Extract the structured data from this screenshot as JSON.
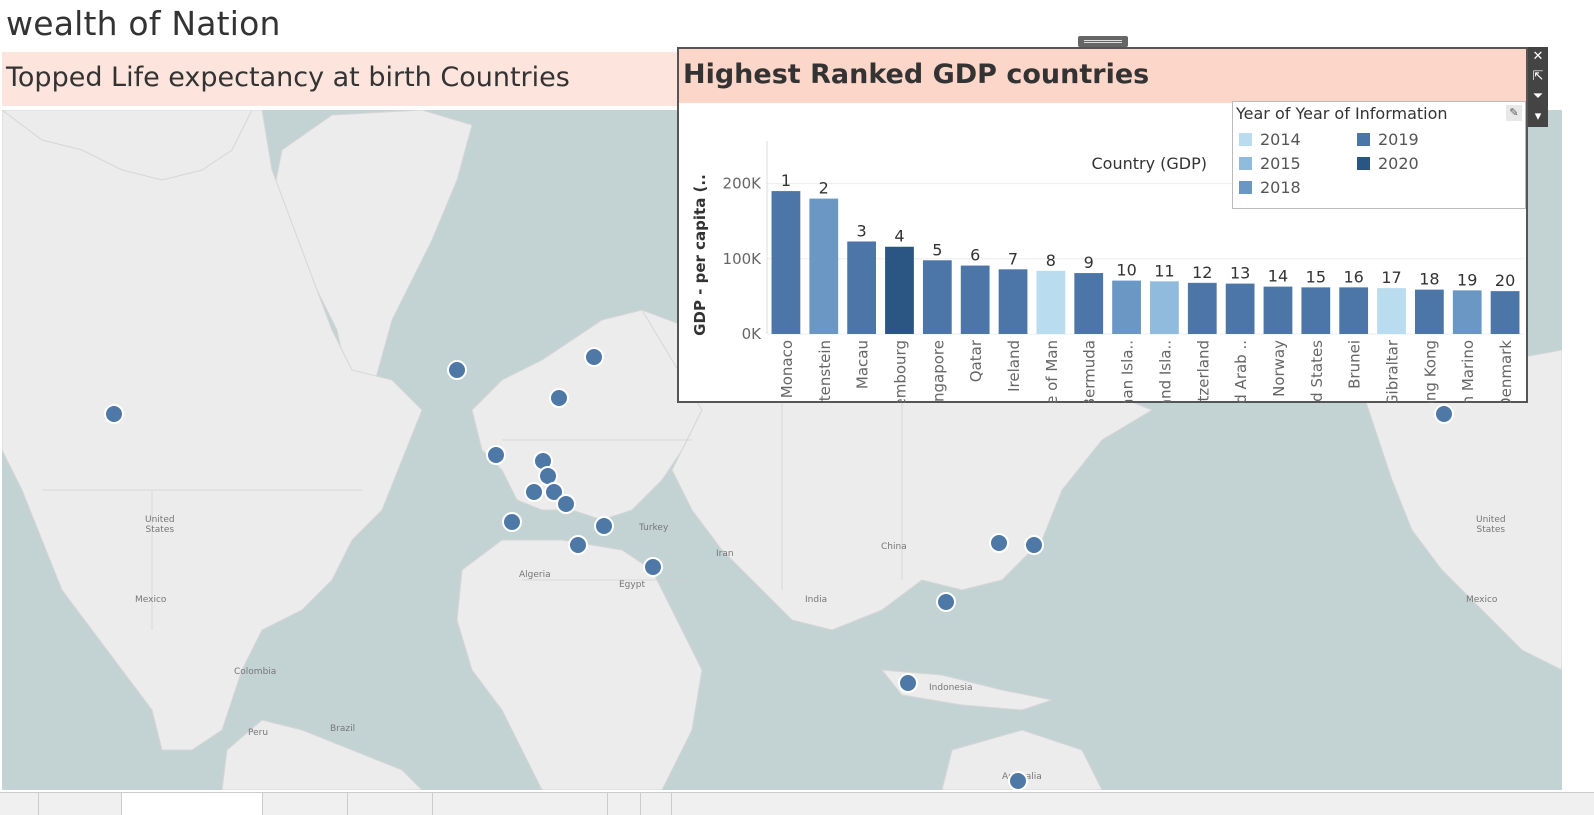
{
  "dashboard": {
    "title": "wealth of Nation"
  },
  "map": {
    "title": "Topped Life expectancy at birth Countries",
    "labels": [
      {
        "text": "United\nStates",
        "id": "us"
      },
      {
        "text": "Mexico",
        "id": "mx"
      },
      {
        "text": "Colombia",
        "id": "co"
      },
      {
        "text": "Brazil",
        "id": "br"
      },
      {
        "text": "Peru",
        "id": "pe"
      },
      {
        "text": "Algeria",
        "id": "dz"
      },
      {
        "text": "Egypt",
        "id": "eg"
      },
      {
        "text": "Turkey",
        "id": "tr"
      },
      {
        "text": "Iran",
        "id": "ir"
      },
      {
        "text": "India",
        "id": "in"
      },
      {
        "text": "China",
        "id": "cn"
      },
      {
        "text": "Indonesia",
        "id": "idn"
      },
      {
        "text": "United\nStates",
        "id": "us2"
      },
      {
        "text": "Mexico",
        "id": "mx2"
      },
      {
        "text": "Australia",
        "id": "au"
      }
    ]
  },
  "chart_data": {
    "type": "bar",
    "title": "Highest Ranked GDP countries",
    "column_header": "Country (GDP)",
    "ylabel": "GDP - per capita (..",
    "yticks": [
      {
        "value": 0,
        "label": "0K"
      },
      {
        "value": 100000,
        "label": "100K"
      },
      {
        "value": 200000,
        "label": "200K"
      }
    ],
    "ylim": [
      0,
      230000
    ],
    "legend": {
      "title": "Year of Year of Information",
      "placement": "top-right",
      "items": [
        {
          "year": "2014",
          "color": "#b9dcef"
        },
        {
          "year": "2015",
          "color": "#91bbdc"
        },
        {
          "year": "2018",
          "color": "#6a97c4"
        },
        {
          "year": "2019",
          "color": "#4c76a7"
        },
        {
          "year": "2020",
          "color": "#2b5583"
        }
      ]
    },
    "bars": [
      {
        "rank": "1",
        "country": "Monaco",
        "value": 190000,
        "year": "2019"
      },
      {
        "rank": "2",
        "country": "Liechtenstein",
        "value": 180000,
        "year": "2018"
      },
      {
        "rank": "3",
        "country": "Macau",
        "value": 123000,
        "year": "2019"
      },
      {
        "rank": "4",
        "country": "Luxembourg",
        "value": 116000,
        "year": "2020"
      },
      {
        "rank": "5",
        "country": "Singapore",
        "value": 98000,
        "year": "2019"
      },
      {
        "rank": "6",
        "country": "Qatar",
        "value": 91000,
        "year": "2019"
      },
      {
        "rank": "7",
        "country": "Ireland",
        "value": 86000,
        "year": "2019"
      },
      {
        "rank": "8",
        "country": "Isle of Man",
        "value": 84000,
        "year": "2014"
      },
      {
        "rank": "9",
        "country": "Bermuda",
        "value": 81000,
        "year": "2019"
      },
      {
        "rank": "10",
        "country": "Cayman Isla..",
        "value": 71000,
        "year": "2018"
      },
      {
        "rank": "11",
        "country": "Falkland Isla..",
        "value": 70000,
        "year": "2015"
      },
      {
        "rank": "12",
        "country": "Switzerland",
        "value": 68000,
        "year": "2019"
      },
      {
        "rank": "13",
        "country": "United Arab ..",
        "value": 67000,
        "year": "2019"
      },
      {
        "rank": "14",
        "country": "Norway",
        "value": 63000,
        "year": "2019"
      },
      {
        "rank": "15",
        "country": "United States",
        "value": 62000,
        "year": "2019"
      },
      {
        "rank": "16",
        "country": "Brunei",
        "value": 62000,
        "year": "2019"
      },
      {
        "rank": "17",
        "country": "Gibraltar",
        "value": 61000,
        "year": "2014"
      },
      {
        "rank": "18",
        "country": "Hong Kong",
        "value": 59000,
        "year": "2019"
      },
      {
        "rank": "19",
        "country": "San Marino",
        "value": 58000,
        "year": "2018"
      },
      {
        "rank": "20",
        "country": "Denmark",
        "value": 57000,
        "year": "2019"
      }
    ]
  },
  "panel_tools": {
    "close": "✕",
    "popout": "⇱",
    "filter": "⏷",
    "more": "▾"
  },
  "legend_edit_icon": "✎"
}
